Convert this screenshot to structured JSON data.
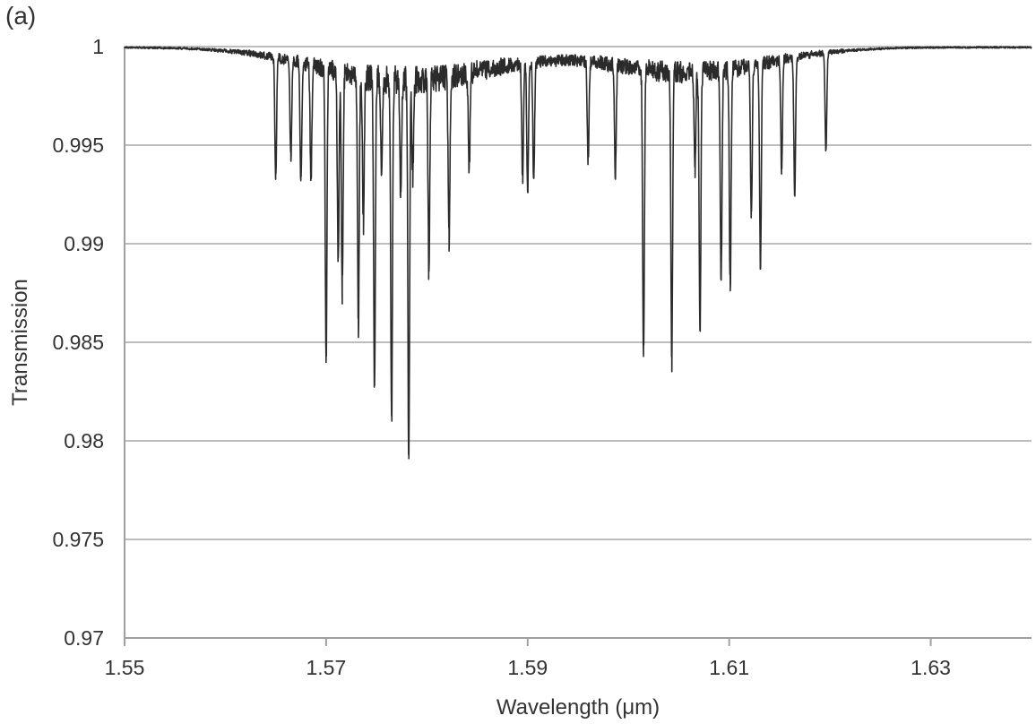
{
  "panel_label": "(a)",
  "chart_data": {
    "type": "line",
    "title": "",
    "xlabel": "Wavelength (μm)",
    "ylabel": "Transmission",
    "xlim": [
      1.55,
      1.64
    ],
    "ylim": [
      0.97,
      1.0
    ],
    "x_ticks": [
      1.55,
      1.57,
      1.59,
      1.61,
      1.63
    ],
    "x_tick_labels": [
      "1.55",
      "1.57",
      "1.59",
      "1.61",
      "1.63"
    ],
    "y_ticks": [
      0.97,
      0.975,
      0.98,
      0.985,
      0.99,
      0.995,
      1.0
    ],
    "y_tick_labels": [
      "0.97",
      "0.975",
      "0.98",
      "0.985",
      "0.99",
      "0.995",
      "1"
    ],
    "grid": "horizontal",
    "legend": "none",
    "line_color": "#2b2b2b",
    "grid_color": "#bdbdbd",
    "series": [
      {
        "baseline": 1.0,
        "absorption_lines": [
          {
            "x": 1.565,
            "y": 0.9939
          },
          {
            "x": 1.5665,
            "y": 0.995
          },
          {
            "x": 1.5675,
            "y": 0.9938
          },
          {
            "x": 1.5685,
            "y": 0.994
          },
          {
            "x": 1.57,
            "y": 0.985
          },
          {
            "x": 1.5712,
            "y": 0.9902
          },
          {
            "x": 1.5716,
            "y": 0.9888
          },
          {
            "x": 1.5732,
            "y": 0.9871
          },
          {
            "x": 1.5737,
            "y": 0.9925
          },
          {
            "x": 1.5748,
            "y": 0.9841
          },
          {
            "x": 1.5755,
            "y": 0.9948
          },
          {
            "x": 1.5765,
            "y": 0.9824
          },
          {
            "x": 1.5774,
            "y": 0.9942
          },
          {
            "x": 1.5782,
            "y": 0.9807
          },
          {
            "x": 1.5786,
            "y": 0.995
          },
          {
            "x": 1.5802,
            "y": 0.9902
          },
          {
            "x": 1.5822,
            "y": 0.9916
          },
          {
            "x": 1.5842,
            "y": 0.995
          },
          {
            "x": 1.5895,
            "y": 0.994
          },
          {
            "x": 1.59,
            "y": 0.9933
          },
          {
            "x": 1.5906,
            "y": 0.9938
          },
          {
            "x": 1.596,
            "y": 0.9949
          },
          {
            "x": 1.5987,
            "y": 0.9945
          },
          {
            "x": 1.6015,
            "y": 0.985
          },
          {
            "x": 1.6043,
            "y": 0.9851
          },
          {
            "x": 1.6066,
            "y": 0.995
          },
          {
            "x": 1.6071,
            "y": 0.9866
          },
          {
            "x": 1.6092,
            "y": 0.9894
          },
          {
            "x": 1.6101,
            "y": 0.9887
          },
          {
            "x": 1.6122,
            "y": 0.9922
          },
          {
            "x": 1.6131,
            "y": 0.9897
          },
          {
            "x": 1.6152,
            "y": 0.9944
          },
          {
            "x": 1.6165,
            "y": 0.993
          },
          {
            "x": 1.6196,
            "y": 0.995
          }
        ]
      }
    ]
  }
}
